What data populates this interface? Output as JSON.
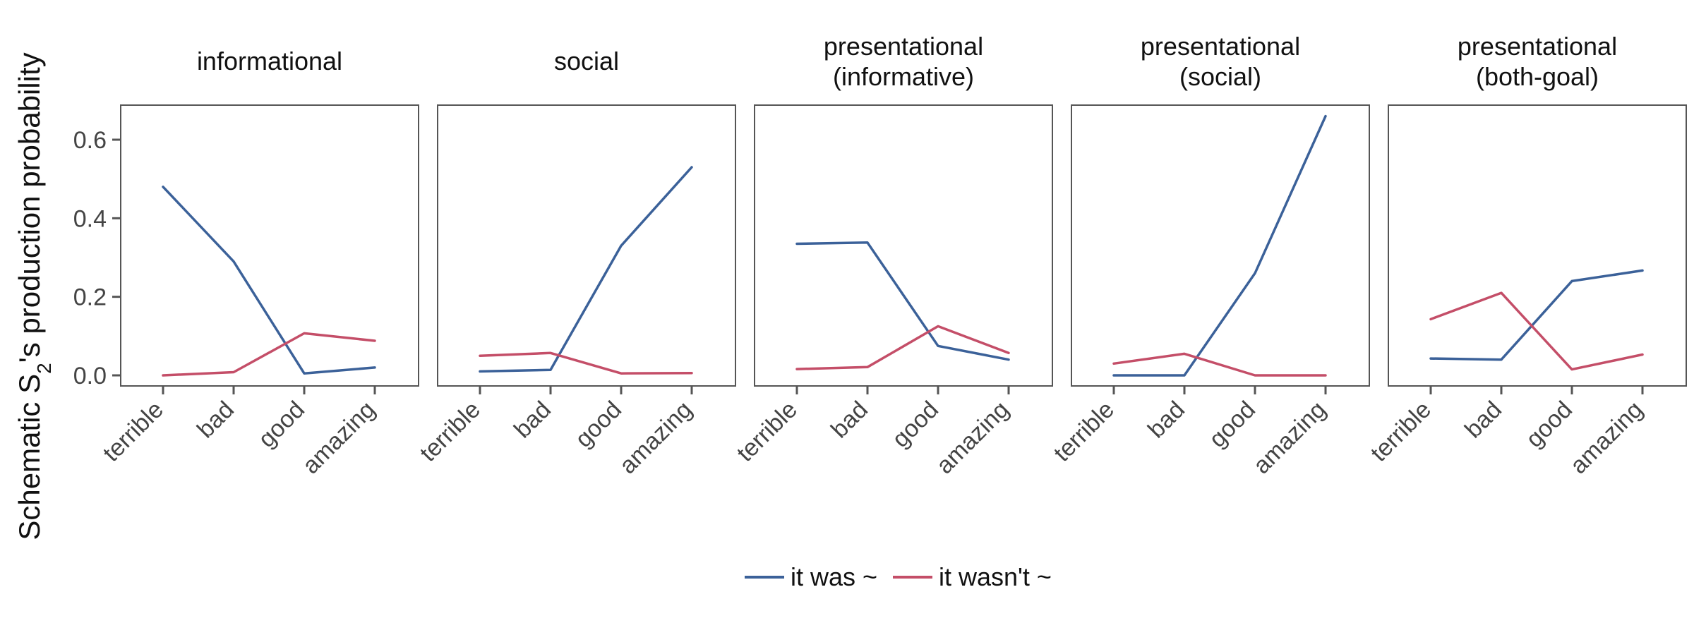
{
  "chart_data": {
    "type": "line",
    "ylabel_parts": {
      "before": "Schematic S",
      "subscript": "2",
      "after": "'s production probability"
    },
    "categories": [
      "terrible",
      "bad",
      "good",
      "amazing"
    ],
    "yticks": [
      0.0,
      0.2,
      0.4,
      0.6
    ],
    "ytick_labels": [
      "0.0",
      "0.2",
      "0.4",
      "0.6"
    ],
    "ylim": [
      -0.03,
      0.69
    ],
    "colors": {
      "it_was": "#3b6199",
      "it_wasnt": "#c44e68"
    },
    "legend": {
      "placement": "bottom",
      "labels": [
        "it was ~",
        "it wasn't ~"
      ]
    },
    "panels": [
      {
        "title_lines": [
          "informational"
        ],
        "series": [
          {
            "name": "it was ~",
            "values": [
              0.48,
              0.29,
              0.005,
              0.02
            ]
          },
          {
            "name": "it wasn't ~",
            "values": [
              0.0,
              0.008,
              0.107,
              0.088
            ]
          }
        ]
      },
      {
        "title_lines": [
          "social"
        ],
        "series": [
          {
            "name": "it was ~",
            "values": [
              0.01,
              0.014,
              0.33,
              0.53
            ]
          },
          {
            "name": "it wasn't ~",
            "values": [
              0.05,
              0.057,
              0.005,
              0.006
            ]
          }
        ]
      },
      {
        "title_lines": [
          "presentational",
          "(informative)"
        ],
        "series": [
          {
            "name": "it was ~",
            "values": [
              0.335,
              0.338,
              0.075,
              0.04
            ]
          },
          {
            "name": "it wasn't ~",
            "values": [
              0.016,
              0.021,
              0.125,
              0.057
            ]
          }
        ]
      },
      {
        "title_lines": [
          "presentational",
          "(social)"
        ],
        "series": [
          {
            "name": "it was ~",
            "values": [
              0.0,
              0.0,
              0.26,
              0.66
            ]
          },
          {
            "name": "it wasn't ~",
            "values": [
              0.03,
              0.055,
              0.0,
              0.0
            ]
          }
        ]
      },
      {
        "title_lines": [
          "presentational",
          "(both-goal)"
        ],
        "series": [
          {
            "name": "it was ~",
            "values": [
              0.043,
              0.04,
              0.24,
              0.267
            ]
          },
          {
            "name": "it wasn't ~",
            "values": [
              0.143,
              0.21,
              0.015,
              0.053
            ]
          }
        ]
      }
    ]
  }
}
